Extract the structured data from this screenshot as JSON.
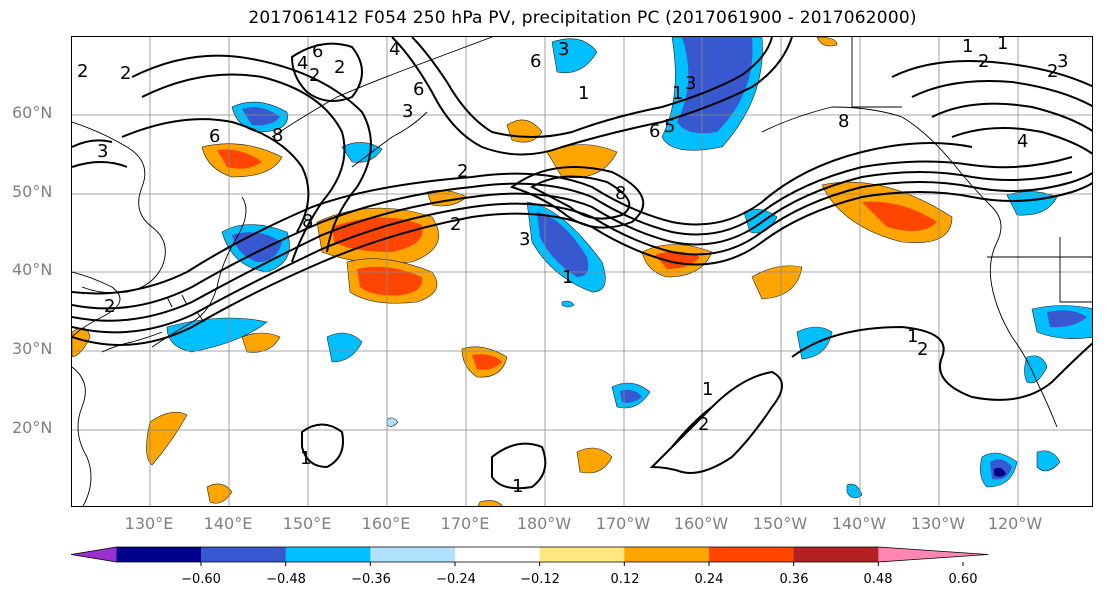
{
  "title": "2017061412 F054 250 hPa PV, precipitation PC (2017061900 - 2017062000)",
  "lat_labels": [
    "60°N",
    "50°N",
    "40°N",
    "30°N",
    "20°N"
  ],
  "lon_labels": [
    "130°E",
    "140°E",
    "150°E",
    "160°E",
    "170°E",
    "180°W",
    "170°W",
    "160°W",
    "150°W",
    "140°W",
    "130°W",
    "120°W"
  ],
  "colorbar": {
    "ticks": [
      "−0.60",
      "−0.48",
      "−0.36",
      "−0.24",
      "−0.12",
      "0.12",
      "0.24",
      "0.36",
      "0.48",
      "0.60"
    ],
    "colors": [
      "#9932cc",
      "#00008b",
      "#3858cf",
      "#00bfff",
      "#b0e2ff",
      "#ffffff",
      "#ffe680",
      "#ffa500",
      "#ff4500",
      "#b22222",
      "#ff85b3"
    ]
  },
  "contour_labels": [
    "2",
    "2",
    "3",
    "4",
    "6",
    "6",
    "8",
    "8",
    "8",
    "6",
    "5",
    "3",
    "1",
    "2",
    "2",
    "3",
    "8",
    "6",
    "1",
    "2",
    "3",
    "1",
    "2",
    "4",
    "2",
    "3",
    "4",
    "1",
    "2",
    "2",
    "3",
    "6",
    "1",
    "1",
    "1",
    "2",
    "1",
    "1",
    "2"
  ]
}
